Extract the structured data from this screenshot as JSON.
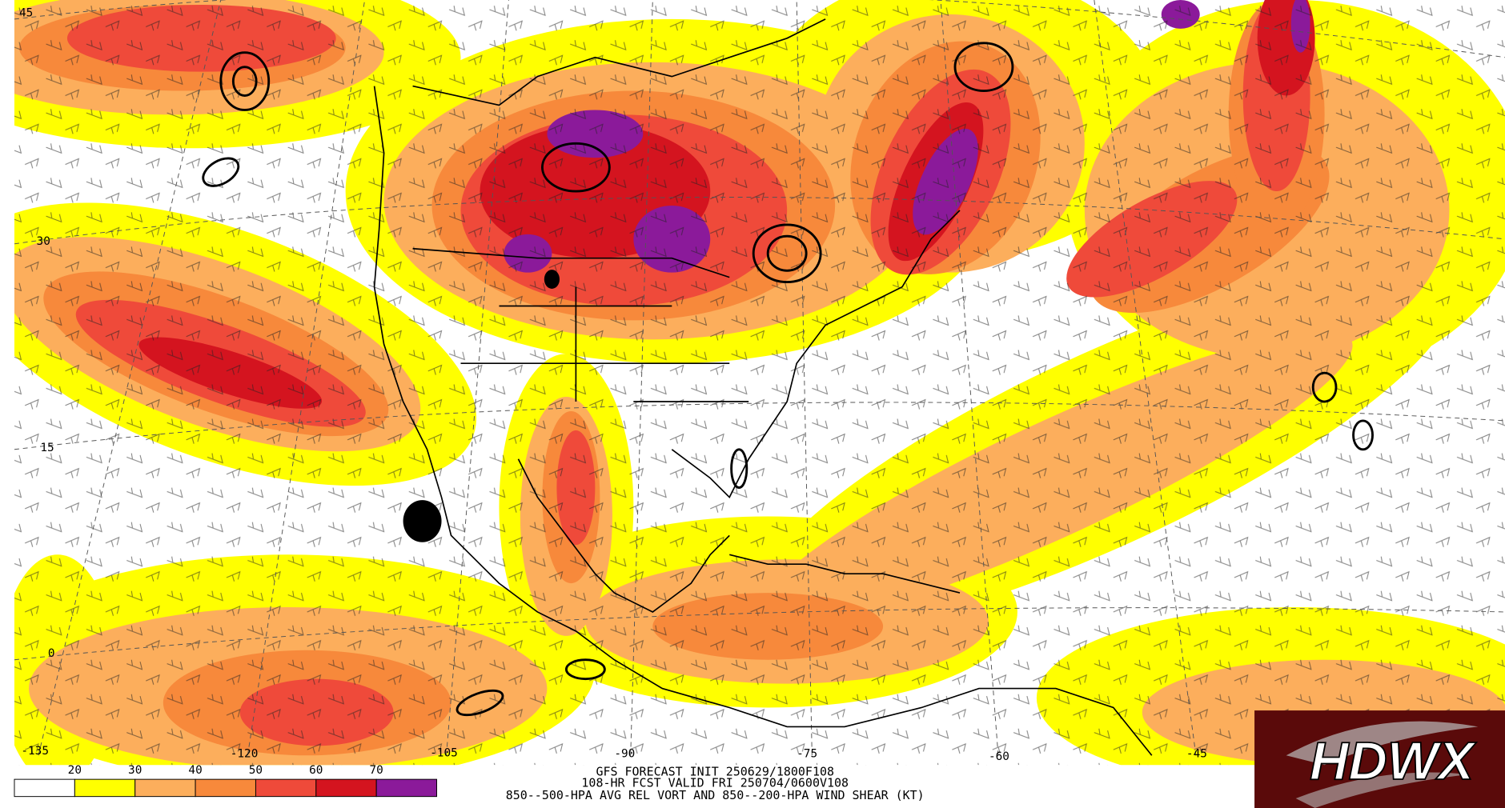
{
  "map": {
    "latitude_labels": [
      "45",
      "30",
      "15",
      "0"
    ],
    "longitude_labels": [
      "-135",
      "-120",
      "-105",
      "-90",
      "-75",
      "-60",
      "-45"
    ]
  },
  "colorbar": {
    "levels": [
      20,
      30,
      40,
      50,
      60,
      70
    ],
    "colors": [
      "#ffffff",
      "#ffff00",
      "#fcae5c",
      "#f7893b",
      "#ef4a3a",
      "#d4141f",
      "#8b1a9a"
    ]
  },
  "caption": [
    "GFS FORECAST INIT 250629/1800F108",
    "108-HR FCST VALID FRI 250704/0600V108",
    "850--500-HPA AVG REL VORT AND 850--200-HPA WIND SHEAR (KT)"
  ],
  "logo": "HDWX"
}
